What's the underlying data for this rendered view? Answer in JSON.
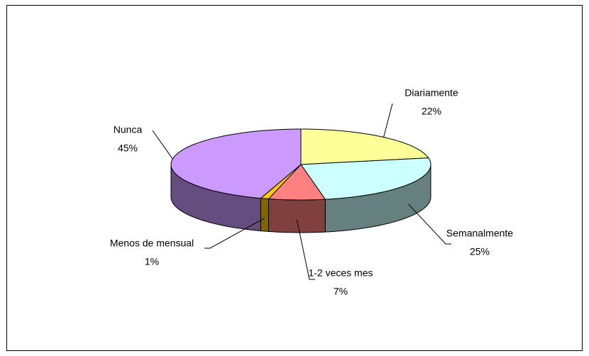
{
  "chart_data": {
    "type": "pie",
    "categories": [
      "Diariamente",
      "Semanalmente",
      "1-2 veces mes",
      "Menos de mensual",
      "Nunca"
    ],
    "values": [
      22,
      25,
      7,
      1,
      45
    ],
    "value_labels": [
      "22%",
      "25%",
      "7%",
      "1%",
      "45%"
    ],
    "colors": [
      "#ffff99",
      "#ccffff",
      "#ff8080",
      "#ffcc00",
      "#cc99ff"
    ]
  }
}
